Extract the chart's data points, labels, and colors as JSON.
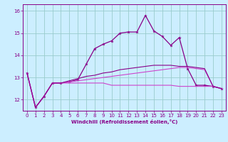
{
  "x": [
    0,
    1,
    2,
    3,
    4,
    5,
    6,
    7,
    8,
    9,
    10,
    11,
    12,
    13,
    14,
    15,
    16,
    17,
    18,
    19,
    20,
    21,
    22,
    23
  ],
  "line1": [
    13.2,
    11.65,
    12.15,
    12.75,
    12.75,
    12.8,
    12.9,
    13.6,
    14.3,
    14.5,
    14.65,
    15.0,
    15.05,
    15.05,
    15.8,
    15.1,
    14.85,
    14.45,
    14.8,
    13.4,
    12.65,
    12.65,
    12.6,
    12.5
  ],
  "line2": [
    13.2,
    11.65,
    12.15,
    12.75,
    12.75,
    12.75,
    12.75,
    12.75,
    12.75,
    12.75,
    12.65,
    12.65,
    12.65,
    12.65,
    12.65,
    12.65,
    12.65,
    12.65,
    12.6,
    12.6,
    12.6,
    12.6,
    12.6,
    12.5
  ],
  "line3": [
    13.2,
    11.65,
    12.15,
    12.75,
    12.75,
    12.8,
    12.85,
    12.9,
    12.95,
    13.0,
    13.05,
    13.1,
    13.15,
    13.2,
    13.25,
    13.3,
    13.35,
    13.4,
    13.45,
    13.45,
    13.4,
    13.35,
    12.6,
    12.5
  ],
  "line4": [
    13.2,
    11.65,
    12.15,
    12.75,
    12.75,
    12.85,
    12.95,
    13.05,
    13.1,
    13.2,
    13.25,
    13.35,
    13.4,
    13.45,
    13.5,
    13.55,
    13.55,
    13.55,
    13.5,
    13.5,
    13.45,
    13.4,
    12.6,
    12.5
  ],
  "color_dark": "#880088",
  "color_light": "#cc44cc",
  "bg_color": "#cceeff",
  "grid_color": "#99cccc",
  "xlabel": "Windchill (Refroidissement éolien,°C)",
  "xlim": [
    -0.5,
    23.5
  ],
  "ylim": [
    11.5,
    16.3
  ],
  "yticks": [
    12,
    13,
    14,
    15,
    16
  ],
  "xticks": [
    0,
    1,
    2,
    3,
    4,
    5,
    6,
    7,
    8,
    9,
    10,
    11,
    12,
    13,
    14,
    15,
    16,
    17,
    18,
    19,
    20,
    21,
    22,
    23
  ]
}
